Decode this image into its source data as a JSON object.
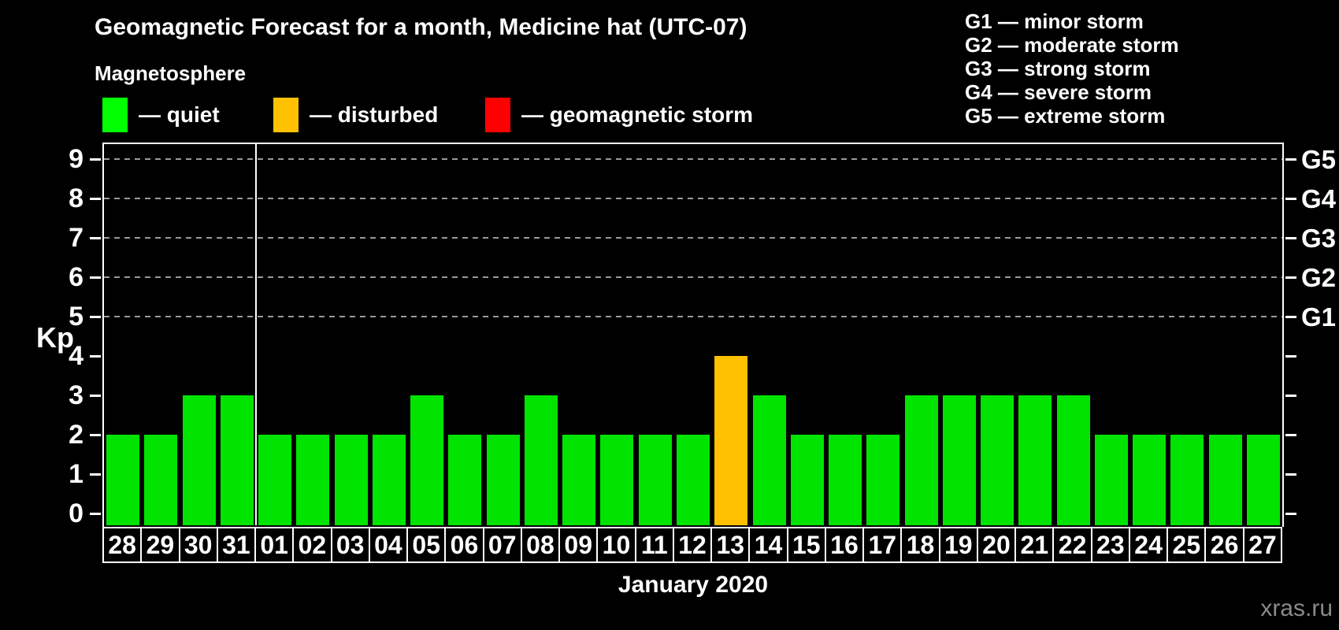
{
  "header": {
    "title": "Geomagnetic Forecast for a month, Medicine hat (UTC-07)",
    "subtitle": "Magnetosphere"
  },
  "legend": {
    "items": [
      {
        "name": "quiet",
        "label": "— quiet",
        "color": "#00FF00"
      },
      {
        "name": "disturbed",
        "label": "— disturbed",
        "color": "#FFC000"
      },
      {
        "name": "geomagnetic-storm",
        "label": "— geomagnetic storm",
        "color": "#FF0000"
      }
    ]
  },
  "g_scale_legend": {
    "items": [
      "G1 — minor storm",
      "G2 — moderate storm",
      "G3 — strong storm",
      "G4 — severe storm",
      "G5 — extreme storm"
    ]
  },
  "watermark": "xras.ru",
  "chart_data": {
    "type": "bar",
    "title": "Geomagnetic Forecast for a month, Medicine hat (UTC-07)",
    "xlabel": "January 2020",
    "ylabel": "Kp",
    "ylim": [
      0,
      9
    ],
    "yticks": [
      0,
      1,
      2,
      3,
      4,
      5,
      6,
      7,
      8,
      9
    ],
    "grid_levels": [
      5,
      6,
      7,
      8,
      9
    ],
    "right_axis": [
      {
        "level": 5,
        "label": "G1"
      },
      {
        "level": 6,
        "label": "G2"
      },
      {
        "level": 7,
        "label": "G3"
      },
      {
        "level": 8,
        "label": "G4"
      },
      {
        "level": 9,
        "label": "G5"
      }
    ],
    "categories": [
      "28",
      "29",
      "30",
      "31",
      "01",
      "02",
      "03",
      "04",
      "05",
      "06",
      "07",
      "08",
      "09",
      "10",
      "11",
      "12",
      "13",
      "14",
      "15",
      "16",
      "17",
      "18",
      "19",
      "20",
      "21",
      "22",
      "23",
      "24",
      "25",
      "26",
      "27"
    ],
    "values": [
      2,
      2,
      3,
      3,
      2,
      2,
      2,
      2,
      3,
      2,
      2,
      3,
      2,
      2,
      2,
      2,
      4,
      3,
      2,
      2,
      2,
      3,
      3,
      3,
      3,
      3,
      2,
      2,
      2,
      2,
      2
    ],
    "statuses": [
      "quiet",
      "quiet",
      "quiet",
      "quiet",
      "quiet",
      "quiet",
      "quiet",
      "quiet",
      "quiet",
      "quiet",
      "quiet",
      "quiet",
      "quiet",
      "quiet",
      "quiet",
      "quiet",
      "disturbed",
      "quiet",
      "quiet",
      "quiet",
      "quiet",
      "quiet",
      "quiet",
      "quiet",
      "quiet",
      "quiet",
      "quiet",
      "quiet",
      "quiet",
      "quiet",
      "quiet"
    ],
    "status_colors": {
      "quiet": "#00E400",
      "disturbed": "#FFC000",
      "storm": "#FF0000"
    },
    "month_separator_after_index": 3,
    "grid_color": "#9a9a9a",
    "legend_position": "top-left"
  }
}
